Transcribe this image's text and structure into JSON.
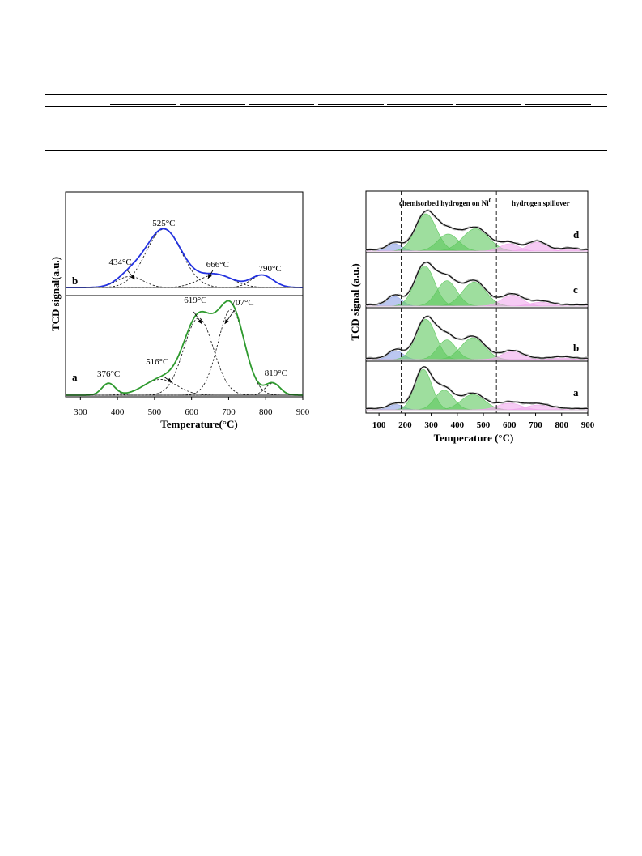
{
  "table_rules": {
    "visible": true
  },
  "chart_data": [
    {
      "type": "line",
      "xlabel": "Temperature(°C)",
      "ylabel": "TCD signal(a.u.)",
      "xlim": [
        260,
        900
      ],
      "xticks": [
        "300",
        "400",
        "500",
        "600",
        "700",
        "800",
        "900"
      ],
      "grid": false,
      "series": [
        {
          "name": "b",
          "color": "#2332e0",
          "peaks": [
            {
              "center": 434,
              "height": 0.19,
              "width": 35,
              "label": "434°C"
            },
            {
              "center": 525,
              "height": 1.0,
              "width": 48,
              "label": "525°C"
            },
            {
              "center": 666,
              "height": 0.22,
              "width": 45,
              "label": "666°C"
            },
            {
              "center": 790,
              "height": 0.21,
              "width": 30,
              "label": "790°C"
            }
          ]
        },
        {
          "name": "a",
          "color": "#2e9a2e",
          "peaks": [
            {
              "center": 376,
              "height": 0.12,
              "width": 18,
              "label": "376°C"
            },
            {
              "center": 516,
              "height": 0.16,
              "width": 45,
              "label": "516°C"
            },
            {
              "center": 619,
              "height": 0.78,
              "width": 40,
              "label": "619°C"
            },
            {
              "center": 707,
              "height": 0.87,
              "width": 36,
              "label": "707°C"
            },
            {
              "center": 819,
              "height": 0.12,
              "width": 20,
              "label": "819°C"
            }
          ]
        }
      ]
    },
    {
      "type": "area",
      "xlabel": "Temperature (°C)",
      "ylabel": "TCD signal (a.u.)",
      "xlim": [
        50,
        900
      ],
      "xticks": [
        "100",
        "200",
        "300",
        "400",
        "500",
        "600",
        "700",
        "800",
        "900"
      ],
      "grid": false,
      "divider_temps": [
        185,
        550
      ],
      "region_labels": {
        "left": "chemisorbed hydrogen on Ni",
        "left_sup": "0",
        "right": "hydrogen spillover"
      },
      "band_colors": {
        "blue": "#8da2e6",
        "green": "#5ec85e",
        "pink": "#f0a8ec"
      },
      "series": [
        {
          "name": "d",
          "peaks": [
            {
              "c": 160,
              "h": 0.18,
              "w": 28,
              "band": "blue"
            },
            {
              "c": 280,
              "h": 0.92,
              "w": 40,
              "band": "green"
            },
            {
              "c": 365,
              "h": 0.42,
              "w": 40,
              "band": "green"
            },
            {
              "c": 470,
              "h": 0.55,
              "w": 50,
              "band": "green"
            },
            {
              "c": 600,
              "h": 0.18,
              "w": 35,
              "band": "pink"
            },
            {
              "c": 705,
              "h": 0.22,
              "w": 35,
              "band": "pink"
            },
            {
              "c": 830,
              "h": 0.05,
              "w": 30,
              "band": "pink"
            }
          ]
        },
        {
          "name": "c",
          "peaks": [
            {
              "c": 160,
              "h": 0.22,
              "w": 28,
              "band": "blue"
            },
            {
              "c": 275,
              "h": 0.92,
              "w": 38,
              "band": "green"
            },
            {
              "c": 360,
              "h": 0.58,
              "w": 38,
              "band": "green"
            },
            {
              "c": 465,
              "h": 0.55,
              "w": 45,
              "band": "green"
            },
            {
              "c": 610,
              "h": 0.25,
              "w": 40,
              "band": "pink"
            },
            {
              "c": 720,
              "h": 0.09,
              "w": 40,
              "band": "pink"
            }
          ]
        },
        {
          "name": "b",
          "peaks": [
            {
              "c": 165,
              "h": 0.2,
              "w": 28,
              "band": "blue"
            },
            {
              "c": 280,
              "h": 0.92,
              "w": 38,
              "band": "green"
            },
            {
              "c": 360,
              "h": 0.45,
              "w": 35,
              "band": "green"
            },
            {
              "c": 460,
              "h": 0.5,
              "w": 45,
              "band": "green"
            },
            {
              "c": 610,
              "h": 0.18,
              "w": 40,
              "band": "pink"
            },
            {
              "c": 800,
              "h": 0.04,
              "w": 35,
              "band": "pink"
            }
          ]
        },
        {
          "name": "a",
          "peaks": [
            {
              "c": 165,
              "h": 0.12,
              "w": 28,
              "band": "blue"
            },
            {
              "c": 270,
              "h": 0.92,
              "w": 33,
              "band": "green"
            },
            {
              "c": 350,
              "h": 0.45,
              "w": 35,
              "band": "green"
            },
            {
              "c": 460,
              "h": 0.35,
              "w": 45,
              "band": "green"
            },
            {
              "c": 600,
              "h": 0.15,
              "w": 45,
              "band": "pink"
            },
            {
              "c": 710,
              "h": 0.11,
              "w": 45,
              "band": "pink"
            }
          ]
        }
      ]
    }
  ]
}
